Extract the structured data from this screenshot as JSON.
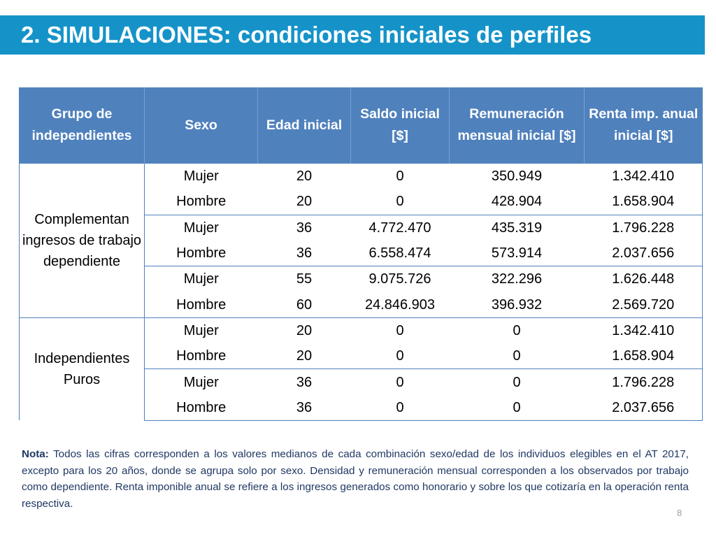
{
  "slide": {
    "title": "2. SIMULACIONES: condiciones iniciales de perfiles",
    "page_number": "8",
    "colors": {
      "title_bar": "#1593c9",
      "table_header": "#4f81bd",
      "note_text": "#1f3864"
    }
  },
  "table": {
    "headers": [
      "Grupo de independientes",
      "Sexo",
      "Edad inicial",
      "Saldo inicial [$]",
      "Remuneración mensual inicial [$]",
      "Renta imp. anual inicial [$]"
    ],
    "groups": [
      {
        "label": "Complementan ingresos de trabajo dependiente",
        "rows": [
          [
            "Mujer",
            "20",
            "0",
            "350.949",
            "1.342.410"
          ],
          [
            "Hombre",
            "20",
            "0",
            "428.904",
            "1.658.904"
          ],
          [
            "Mujer",
            "36",
            "4.772.470",
            "435.319",
            "1.796.228"
          ],
          [
            "Hombre",
            "36",
            "6.558.474",
            "573.914",
            "2.037.656"
          ],
          [
            "Mujer",
            "55",
            "9.075.726",
            "322.296",
            "1.626.448"
          ],
          [
            "Hombre",
            "60",
            "24.846.903",
            "396.932",
            "2.569.720"
          ]
        ]
      },
      {
        "label": "Independientes Puros",
        "rows": [
          [
            "Mujer",
            "20",
            "0",
            "0",
            "1.342.410"
          ],
          [
            "Hombre",
            "20",
            "0",
            "0",
            "1.658.904"
          ],
          [
            "Mujer",
            "36",
            "0",
            "0",
            "1.796.228"
          ],
          [
            "Hombre",
            "36",
            "0",
            "0",
            "2.037.656"
          ]
        ]
      }
    ]
  },
  "note": {
    "label": "Nota:",
    "text": " Todos las cifras corresponden a los valores medianos de cada combinación sexo/edad de los individuos elegibles en el AT 2017, excepto para los 20 años, donde se agrupa solo por sexo. Densidad y remuneración mensual corresponden a los observados por trabajo como dependiente. Renta imponible anual se refiere a los ingresos generados como honorario y sobre los que cotizaría en la operación renta respectiva."
  }
}
